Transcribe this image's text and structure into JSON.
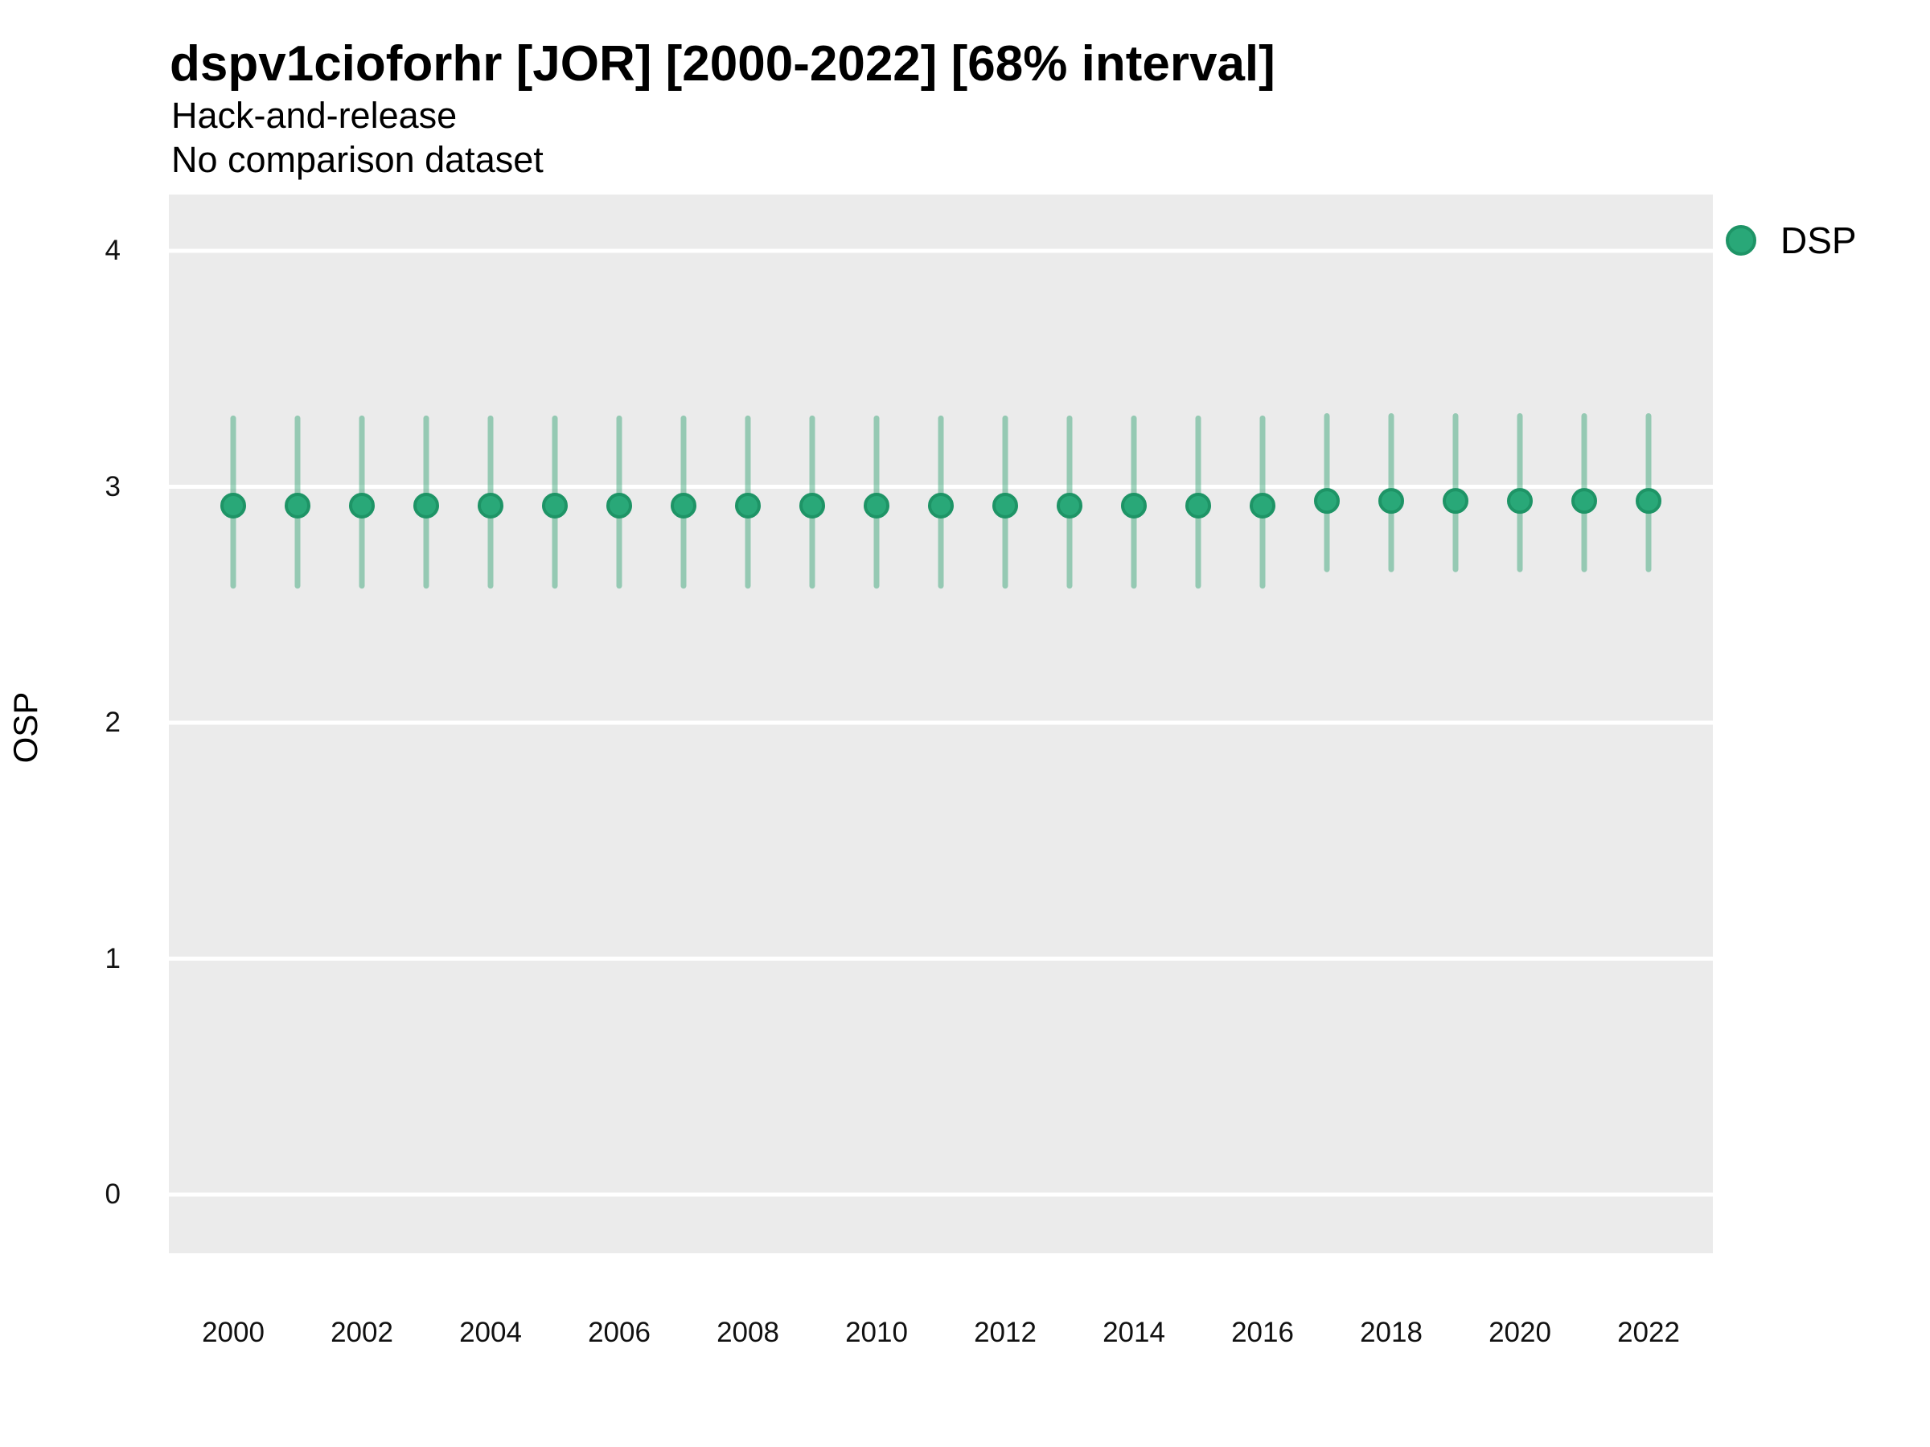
{
  "chart_data": {
    "type": "pointrange",
    "title": "dspv1cioforhr [JOR] [2000-2022] [68% interval]",
    "subtitle_line1": "Hack-and-release",
    "subtitle_line2": "No comparison dataset",
    "xlabel": "",
    "ylabel": "OSP",
    "x_ticks": [
      2000,
      2002,
      2004,
      2006,
      2008,
      2010,
      2012,
      2014,
      2016,
      2018,
      2020,
      2022
    ],
    "y_ticks": [
      0,
      1,
      2,
      3,
      4
    ],
    "ylim": [
      -0.25,
      4.24
    ],
    "xlim": [
      1999,
      2023
    ],
    "grid": "horizontal white gridlines on grey panel",
    "legend_position": "right",
    "colors": {
      "panel_background": "#ebebeb",
      "gridline": "#ffffff",
      "point_fill": "#29a878",
      "point_stroke": "#1e9466",
      "interval_line": "rgba(44,160,110,0.45)",
      "text": "#000000"
    },
    "series": [
      {
        "name": "DSP",
        "color": "#29a878",
        "points": [
          {
            "year": 2000,
            "value": 2.92,
            "lo": 2.58,
            "hi": 3.29
          },
          {
            "year": 2001,
            "value": 2.92,
            "lo": 2.58,
            "hi": 3.29
          },
          {
            "year": 2002,
            "value": 2.92,
            "lo": 2.58,
            "hi": 3.29
          },
          {
            "year": 2003,
            "value": 2.92,
            "lo": 2.58,
            "hi": 3.29
          },
          {
            "year": 2004,
            "value": 2.92,
            "lo": 2.58,
            "hi": 3.29
          },
          {
            "year": 2005,
            "value": 2.92,
            "lo": 2.58,
            "hi": 3.29
          },
          {
            "year": 2006,
            "value": 2.92,
            "lo": 2.58,
            "hi": 3.29
          },
          {
            "year": 2007,
            "value": 2.92,
            "lo": 2.58,
            "hi": 3.29
          },
          {
            "year": 2008,
            "value": 2.92,
            "lo": 2.58,
            "hi": 3.29
          },
          {
            "year": 2009,
            "value": 2.92,
            "lo": 2.58,
            "hi": 3.29
          },
          {
            "year": 2010,
            "value": 2.92,
            "lo": 2.58,
            "hi": 3.29
          },
          {
            "year": 2011,
            "value": 2.92,
            "lo": 2.58,
            "hi": 3.29
          },
          {
            "year": 2012,
            "value": 2.92,
            "lo": 2.58,
            "hi": 3.29
          },
          {
            "year": 2013,
            "value": 2.92,
            "lo": 2.58,
            "hi": 3.29
          },
          {
            "year": 2014,
            "value": 2.92,
            "lo": 2.58,
            "hi": 3.29
          },
          {
            "year": 2015,
            "value": 2.92,
            "lo": 2.58,
            "hi": 3.29
          },
          {
            "year": 2016,
            "value": 2.92,
            "lo": 2.58,
            "hi": 3.29
          },
          {
            "year": 2017,
            "value": 2.94,
            "lo": 2.65,
            "hi": 3.3
          },
          {
            "year": 2018,
            "value": 2.94,
            "lo": 2.65,
            "hi": 3.3
          },
          {
            "year": 2019,
            "value": 2.94,
            "lo": 2.65,
            "hi": 3.3
          },
          {
            "year": 2020,
            "value": 2.94,
            "lo": 2.65,
            "hi": 3.3
          },
          {
            "year": 2021,
            "value": 2.94,
            "lo": 2.65,
            "hi": 3.3
          },
          {
            "year": 2022,
            "value": 2.94,
            "lo": 2.65,
            "hi": 3.3
          }
        ]
      }
    ]
  }
}
